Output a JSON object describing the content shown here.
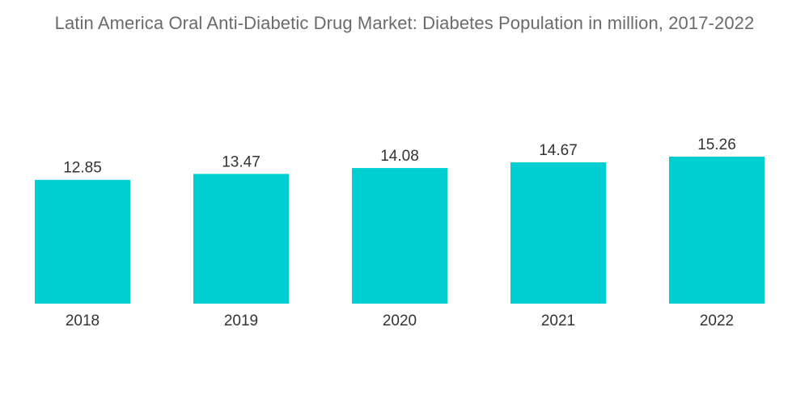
{
  "chart_data": {
    "type": "bar",
    "title": "Latin America Oral Anti-Diabetic Drug Market: Diabetes Population in million, 2017-2022",
    "categories": [
      "2018",
      "2019",
      "2020",
      "2021",
      "2022"
    ],
    "values": [
      12.85,
      13.47,
      14.08,
      14.67,
      15.26
    ],
    "value_labels": [
      "12.85",
      "13.47",
      "14.08",
      "14.67",
      "15.26"
    ],
    "xlabel": "",
    "ylabel": "",
    "ylim": [
      0,
      15.26
    ],
    "grid": false,
    "legend": "none",
    "bar_color": "#00CED1"
  }
}
